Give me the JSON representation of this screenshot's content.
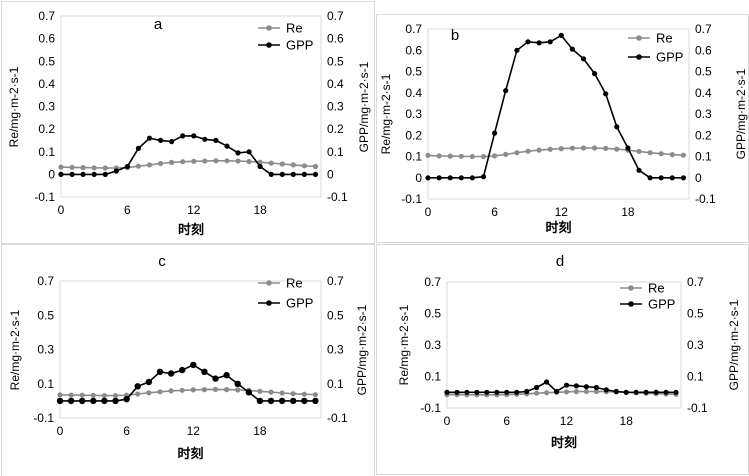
{
  "chart_data": [
    {
      "type": "line",
      "panel_label": "a",
      "xlabel": "时刻",
      "ylabel_left": "Re/mg·m-2·s-1",
      "ylabel_right": "GPP/mg·m-2·s-1",
      "ylim": [
        -0.1,
        0.7
      ],
      "yticks": [
        "-0.1",
        "0",
        "0.1",
        "0.2",
        "0.3",
        "0.4",
        "0.5",
        "0.6",
        "0.7"
      ],
      "xticks": [
        "0",
        "6",
        "12",
        "18"
      ],
      "xlim": [
        0,
        23.5
      ],
      "x": [
        0,
        1,
        2,
        3,
        4,
        5,
        6,
        7,
        8,
        9,
        10,
        11,
        12,
        13,
        14,
        15,
        16,
        17,
        18,
        19,
        20,
        21,
        22,
        23
      ],
      "series": [
        {
          "name": "Re",
          "color": "#8c8c8c",
          "values": [
            0.032,
            0.031,
            0.03,
            0.029,
            0.028,
            0.028,
            0.03,
            0.036,
            0.042,
            0.048,
            0.053,
            0.056,
            0.058,
            0.059,
            0.06,
            0.06,
            0.059,
            0.057,
            0.054,
            0.05,
            0.046,
            0.042,
            0.038,
            0.035
          ]
        },
        {
          "name": "GPP",
          "color": "#000000",
          "values": [
            0,
            0,
            0,
            0,
            0,
            0.015,
            0.035,
            0.115,
            0.16,
            0.15,
            0.145,
            0.17,
            0.17,
            0.155,
            0.15,
            0.125,
            0.095,
            0.1,
            0.035,
            0,
            0,
            0,
            0,
            0
          ]
        }
      ]
    },
    {
      "type": "line",
      "panel_label": "b",
      "xlabel": "时刻",
      "ylabel_left": "Re/mg·m-2·s-1",
      "ylabel_right": "GPP/mg·m-2·s-1",
      "ylim": [
        -0.1,
        0.7
      ],
      "yticks": [
        "-0.1",
        "0",
        "0.1",
        "0.2",
        "0.3",
        "0.4",
        "0.5",
        "0.6",
        "0.7"
      ],
      "xticks": [
        "0",
        "6",
        "12",
        "18"
      ],
      "xlim": [
        0,
        23.5
      ],
      "x": [
        0,
        1,
        2,
        3,
        4,
        5,
        6,
        7,
        8,
        9,
        10,
        11,
        12,
        13,
        14,
        15,
        16,
        17,
        18,
        19,
        20,
        21,
        22,
        23
      ],
      "series": [
        {
          "name": "Re",
          "color": "#8c8c8c",
          "values": [
            0.105,
            0.103,
            0.102,
            0.101,
            0.1,
            0.1,
            0.103,
            0.11,
            0.118,
            0.125,
            0.13,
            0.134,
            0.137,
            0.139,
            0.14,
            0.14,
            0.138,
            0.135,
            0.13,
            0.124,
            0.118,
            0.113,
            0.109,
            0.106
          ]
        },
        {
          "name": "GPP",
          "color": "#000000",
          "values": [
            0,
            0,
            0,
            0,
            0,
            0.005,
            0.21,
            0.41,
            0.6,
            0.64,
            0.635,
            0.64,
            0.67,
            0.605,
            0.56,
            0.49,
            0.395,
            0.24,
            0.14,
            0.035,
            0,
            0,
            0,
            0
          ]
        }
      ]
    },
    {
      "type": "line",
      "panel_label": "c",
      "xlabel": "时刻",
      "ylabel_left": "Re/mg·m-2·s-1",
      "ylabel_right": "GPP/mg·m-2·s-1",
      "ylim": [
        -0.1,
        0.7
      ],
      "yticks": [
        "-0.1",
        "0.1",
        "0.3",
        "0.5",
        "0.7"
      ],
      "xticks": [
        "0",
        "6",
        "12",
        "18"
      ],
      "xlim": [
        0,
        23.5
      ],
      "x": [
        0,
        1,
        2,
        3,
        4,
        5,
        6,
        7,
        8,
        9,
        10,
        11,
        12,
        13,
        14,
        15,
        16,
        17,
        18,
        19,
        20,
        21,
        22,
        23
      ],
      "series": [
        {
          "name": "Re",
          "color": "#8c8c8c",
          "values": [
            0.035,
            0.034,
            0.033,
            0.032,
            0.031,
            0.031,
            0.033,
            0.04,
            0.047,
            0.053,
            0.058,
            0.062,
            0.064,
            0.066,
            0.067,
            0.066,
            0.064,
            0.061,
            0.056,
            0.051,
            0.046,
            0.042,
            0.039,
            0.036
          ]
        },
        {
          "name": "GPP",
          "color": "#000000",
          "values": [
            0,
            0,
            0,
            0,
            0,
            0,
            0.01,
            0.085,
            0.11,
            0.17,
            0.16,
            0.18,
            0.21,
            0.17,
            0.13,
            0.15,
            0.1,
            0.05,
            0,
            0,
            0,
            0,
            0,
            0
          ]
        }
      ]
    },
    {
      "type": "line",
      "panel_label": "d",
      "xlabel": "时刻",
      "ylabel_left": "Re/mg·m-2·s-1",
      "ylabel_right": "GPP/mg·m-2·s-1",
      "ylim": [
        -0.1,
        0.7
      ],
      "yticks": [
        "-0.1",
        "0.1",
        "0.3",
        "0.5",
        "0.7"
      ],
      "xticks": [
        "0",
        "6",
        "12",
        "18"
      ],
      "xlim": [
        0,
        23.5
      ],
      "x": [
        0,
        1,
        2,
        3,
        4,
        5,
        6,
        7,
        8,
        9,
        10,
        11,
        12,
        13,
        14,
        15,
        16,
        17,
        18,
        19,
        20,
        21,
        22,
        23
      ],
      "series": [
        {
          "name": "Re",
          "color": "#8c8c8c",
          "values": [
            -0.015,
            -0.015,
            -0.016,
            -0.016,
            -0.016,
            -0.016,
            -0.015,
            -0.013,
            -0.01,
            -0.006,
            -0.003,
            0,
            0.002,
            0.004,
            0.005,
            0.005,
            0.004,
            0.002,
            0,
            -0.003,
            -0.006,
            -0.009,
            -0.011,
            -0.013
          ]
        },
        {
          "name": "GPP",
          "color": "#000000",
          "values": [
            0,
            0,
            0,
            0,
            0,
            0,
            0,
            0,
            0.005,
            0.03,
            0.065,
            0.005,
            0.045,
            0.04,
            0.035,
            0.03,
            0.015,
            0.005,
            0,
            0,
            0,
            0,
            0,
            0
          ]
        }
      ]
    }
  ]
}
